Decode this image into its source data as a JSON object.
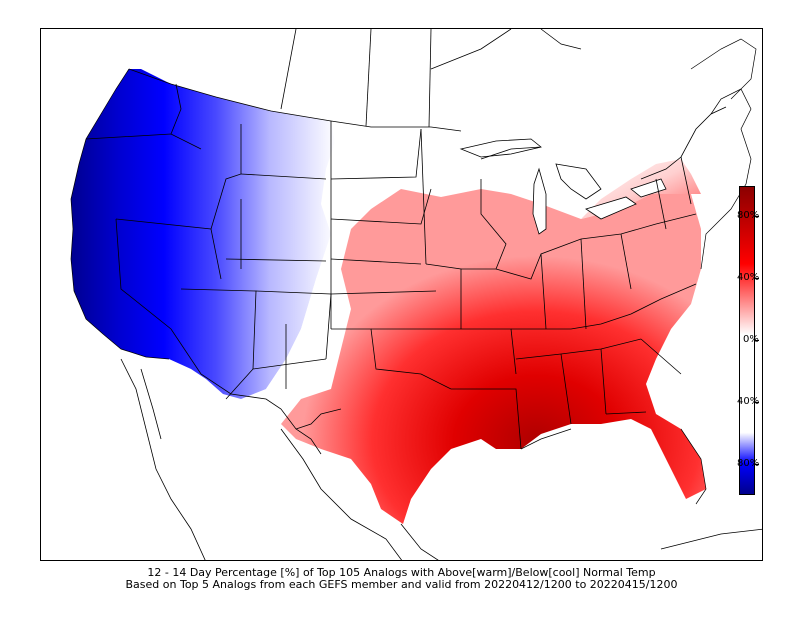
{
  "caption": {
    "line1": "12 - 14 Day Percentage [%] of Top 105 Analogs with Above[warm]/Below[cool] Normal Temp",
    "line2": "Based on Top 5 Analogs from each GEFS member and valid from 20220412/1200 to 20220415/1200"
  },
  "colorbar": {
    "tick_labels": [
      "80%",
      "40%",
      "0%",
      "40%",
      "80%"
    ],
    "colors": {
      "cool_max": "#00008b",
      "cool": "#0000ff",
      "neutral": "#ffffff",
      "warm": "#ff0000",
      "warm_max": "#8b0000"
    }
  },
  "legend_placement": "right"
}
